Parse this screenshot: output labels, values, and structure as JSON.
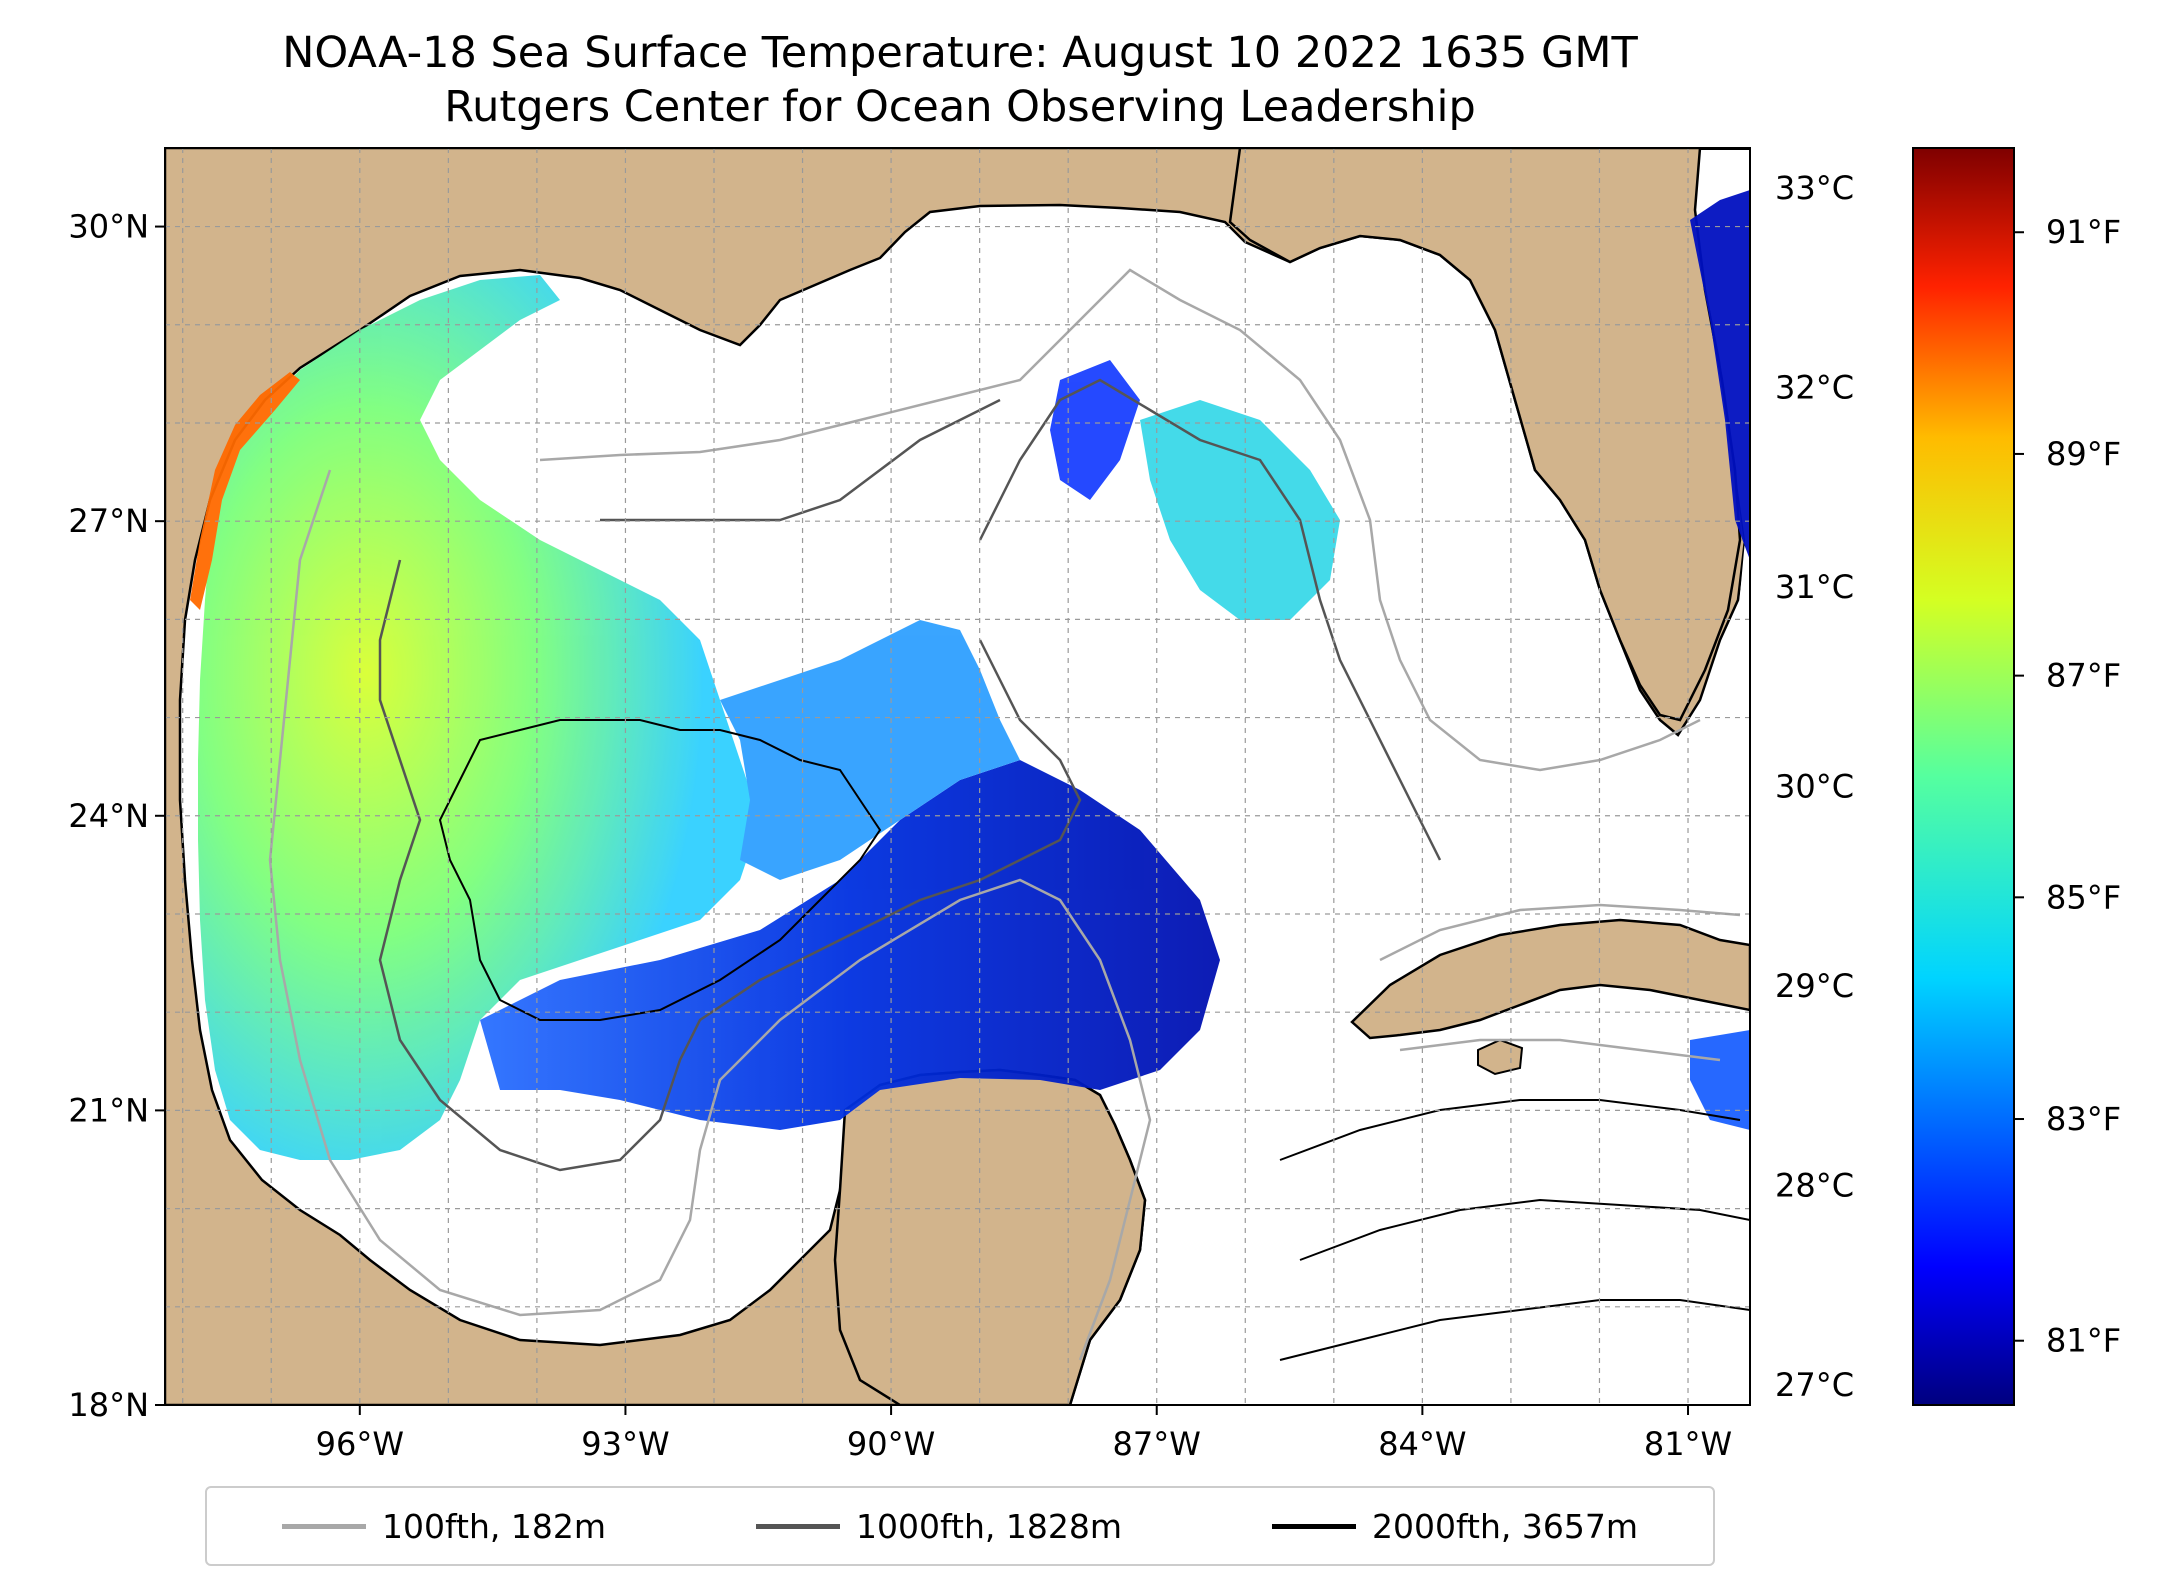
{
  "title": {
    "line1": "NOAA-18 Sea Surface Temperature: August 10 2022 1635 GMT",
    "line2": "Rutgers Center for Ocean Observing Leadership"
  },
  "map": {
    "extent": {
      "lon": [
        -98.2,
        -80.3
      ],
      "lat": [
        18.0,
        30.8
      ]
    },
    "lat_ticks": [
      {
        "value": 30,
        "label": "30°N"
      },
      {
        "value": 27,
        "label": "27°N"
      },
      {
        "value": 24,
        "label": "24°N"
      },
      {
        "value": 21,
        "label": "21°N"
      },
      {
        "value": 18,
        "label": "18°N"
      }
    ],
    "lon_ticks": [
      {
        "value": -96,
        "label": "96°W"
      },
      {
        "value": -93,
        "label": "93°W"
      },
      {
        "value": -90,
        "label": "90°W"
      },
      {
        "value": -87,
        "label": "87°W"
      },
      {
        "value": -84,
        "label": "84°W"
      },
      {
        "value": -81,
        "label": "81°W"
      }
    ],
    "grid": true,
    "land_color": "#d2b48c",
    "cloud_color": "#ffffff"
  },
  "colorbar": {
    "celsius_ticks": [
      {
        "value": 33,
        "label": "33°C"
      },
      {
        "value": 32,
        "label": "32°C"
      },
      {
        "value": 31,
        "label": "31°C"
      },
      {
        "value": 30,
        "label": "30°C"
      },
      {
        "value": 29,
        "label": "29°C"
      },
      {
        "value": 28,
        "label": "28°C"
      },
      {
        "value": 27,
        "label": "27°C"
      }
    ],
    "fahrenheit_ticks": [
      {
        "value": 91,
        "label": "91°F"
      },
      {
        "value": 89,
        "label": "89°F"
      },
      {
        "value": 87,
        "label": "87°F"
      },
      {
        "value": 85,
        "label": "85°F"
      },
      {
        "value": 83,
        "label": "83°F"
      },
      {
        "value": 81,
        "label": "81°F"
      }
    ],
    "range_c": [
      26.9,
      33.2
    ],
    "colormap": "jet"
  },
  "legend": {
    "items": [
      {
        "label": "100fth, 182m",
        "color": "#a8a8a8"
      },
      {
        "label": "1000fth, 1828m",
        "color": "#555555"
      },
      {
        "label": "2000fth, 3657m",
        "color": "#000000"
      }
    ]
  }
}
